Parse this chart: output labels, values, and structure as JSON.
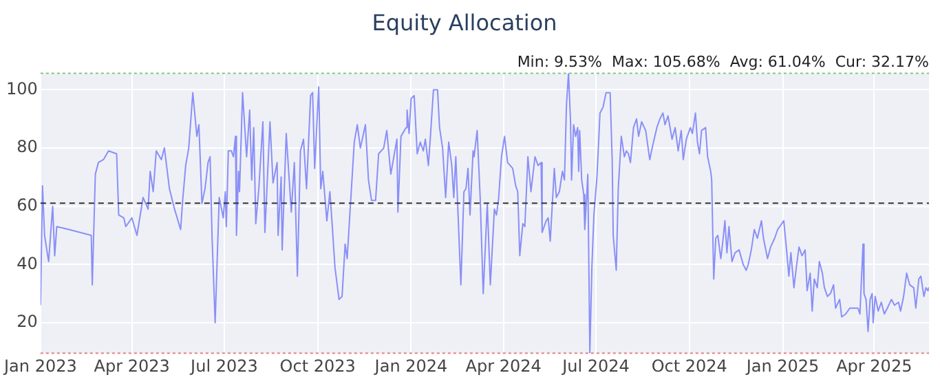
{
  "chart_data": {
    "type": "line",
    "title": "Equity Allocation",
    "annotations": [
      "Min: 9.53%  Max: 105.68%  Avg: 61.04%  Cur: 32.17%"
    ],
    "x": [
      "2023-01-01",
      "2023-01-03",
      "2023-01-05",
      "2023-01-09",
      "2023-01-13",
      "2023-01-15",
      "2023-01-17",
      "2023-01-29",
      "2023-02-20",
      "2023-02-21",
      "2023-02-24",
      "2023-02-27",
      "2023-03-04",
      "2023-03-09",
      "2023-03-17",
      "2023-03-19",
      "2023-03-24",
      "2023-03-26",
      "2023-04-01",
      "2023-04-06",
      "2023-04-12",
      "2023-04-17",
      "2023-04-19",
      "2023-04-22",
      "2023-04-25",
      "2023-04-30",
      "2023-05-03",
      "2023-05-08",
      "2023-05-13",
      "2023-05-19",
      "2023-05-21",
      "2023-05-24",
      "2023-05-27",
      "2023-05-31",
      "2023-06-04",
      "2023-06-06",
      "2023-06-09",
      "2023-06-12",
      "2023-06-15",
      "2023-06-17",
      "2023-06-19",
      "2023-06-22",
      "2023-06-26",
      "2023-06-30",
      "2023-07-02",
      "2023-07-03",
      "2023-07-05",
      "2023-07-08",
      "2023-07-10",
      "2023-07-12",
      "2023-07-13",
      "2023-07-15",
      "2023-07-16",
      "2023-07-19",
      "2023-07-23",
      "2023-07-26",
      "2023-07-28",
      "2023-07-30",
      "2023-08-01",
      "2023-08-04",
      "2023-08-08",
      "2023-08-10",
      "2023-08-15",
      "2023-08-18",
      "2023-08-22",
      "2023-08-23",
      "2023-08-26",
      "2023-08-27",
      "2023-08-31",
      "2023-09-05",
      "2023-09-08",
      "2023-09-11",
      "2023-09-14",
      "2023-09-17",
      "2023-09-20",
      "2023-09-24",
      "2023-09-26",
      "2023-09-28",
      "2023-10-02",
      "2023-10-04",
      "2023-10-06",
      "2023-10-10",
      "2023-10-13",
      "2023-10-15",
      "2023-10-18",
      "2023-10-22",
      "2023-10-25",
      "2023-10-28",
      "2023-10-30",
      "2023-11-06",
      "2023-11-09",
      "2023-11-12",
      "2023-11-17",
      "2023-11-20",
      "2023-11-23",
      "2023-11-27",
      "2023-11-30",
      "2023-12-05",
      "2023-12-08",
      "2023-12-12",
      "2023-12-15",
      "2023-12-18",
      "2023-12-19",
      "2023-12-22",
      "2023-12-27",
      "2023-12-28",
      "2023-12-30",
      "2024-01-01",
      "2024-01-04",
      "2024-01-07",
      "2024-01-10",
      "2024-01-13",
      "2024-01-15",
      "2024-01-18",
      "2024-01-20",
      "2024-01-23",
      "2024-01-27",
      "2024-01-29",
      "2024-02-01",
      "2024-02-04",
      "2024-02-07",
      "2024-02-10",
      "2024-02-12",
      "2024-02-14",
      "2024-02-16",
      "2024-02-19",
      "2024-02-22",
      "2024-02-24",
      "2024-02-26",
      "2024-02-28",
      "2024-03-02",
      "2024-03-03",
      "2024-03-06",
      "2024-03-09",
      "2024-03-12",
      "2024-03-16",
      "2024-03-19",
      "2024-03-23",
      "2024-03-25",
      "2024-03-27",
      "2024-03-30",
      "2024-04-02",
      "2024-04-05",
      "2024-04-10",
      "2024-04-13",
      "2024-04-15",
      "2024-04-17",
      "2024-04-20",
      "2024-04-22",
      "2024-04-25",
      "2024-04-28",
      "2024-05-02",
      "2024-05-05",
      "2024-05-08",
      "2024-05-09",
      "2024-05-13",
      "2024-05-15",
      "2024-05-17",
      "2024-05-21",
      "2024-05-23",
      "2024-05-26",
      "2024-05-29",
      "2024-05-31",
      "2024-06-02",
      "2024-06-04",
      "2024-06-06",
      "2024-06-07",
      "2024-06-09",
      "2024-06-11",
      "2024-06-13",
      "2024-06-14",
      "2024-06-15",
      "2024-06-17",
      "2024-06-19",
      "2024-06-20",
      "2024-06-22",
      "2024-06-23",
      "2024-06-25",
      "2024-06-27",
      "2024-06-29",
      "2024-07-02",
      "2024-07-05",
      "2024-07-08",
      "2024-07-11",
      "2024-07-15",
      "2024-07-17",
      "2024-07-18",
      "2024-07-21",
      "2024-07-23",
      "2024-07-26",
      "2024-07-29",
      "2024-07-31",
      "2024-08-02",
      "2024-08-04",
      "2024-08-07",
      "2024-08-10",
      "2024-08-12",
      "2024-08-15",
      "2024-08-19",
      "2024-08-23",
      "2024-08-26",
      "2024-08-30",
      "2024-09-02",
      "2024-09-05",
      "2024-09-07",
      "2024-09-10",
      "2024-09-14",
      "2024-09-17",
      "2024-09-20",
      "2024-09-23",
      "2024-09-25",
      "2024-09-28",
      "2024-10-02",
      "2024-10-04",
      "2024-10-07",
      "2024-10-09",
      "2024-10-11",
      "2024-10-13",
      "2024-10-17",
      "2024-10-19",
      "2024-10-22",
      "2024-10-23",
      "2024-10-25",
      "2024-10-27",
      "2024-10-29",
      "2024-11-01",
      "2024-11-03",
      "2024-11-05",
      "2024-11-07",
      "2024-11-09",
      "2024-11-12",
      "2024-11-15",
      "2024-11-19",
      "2024-11-23",
      "2024-11-26",
      "2024-11-28",
      "2024-12-01",
      "2024-12-04",
      "2024-12-07",
      "2024-12-09",
      "2024-12-11",
      "2024-12-13",
      "2024-12-17",
      "2024-12-20",
      "2024-12-24",
      "2024-12-27",
      "2024-12-31",
      "2025-01-02",
      "2025-01-05",
      "2025-01-07",
      "2025-01-09",
      "2025-01-12",
      "2025-01-14",
      "2025-01-17",
      "2025-01-20",
      "2025-01-23",
      "2025-01-25",
      "2025-01-28",
      "2025-01-30",
      "2025-02-01",
      "2025-02-04",
      "2025-02-06",
      "2025-02-09",
      "2025-02-11",
      "2025-02-14",
      "2025-02-17",
      "2025-02-20",
      "2025-02-22",
      "2025-02-26",
      "2025-02-28",
      "2025-03-04",
      "2025-03-08",
      "2025-03-11",
      "2025-03-13",
      "2025-03-16",
      "2025-03-18",
      "2025-03-21",
      "2025-03-22",
      "2025-03-24",
      "2025-03-26",
      "2025-03-28",
      "2025-03-30",
      "2025-03-31",
      "2025-04-02",
      "2025-04-05",
      "2025-04-08",
      "2025-04-11",
      "2025-04-14",
      "2025-04-18",
      "2025-04-21",
      "2025-04-25",
      "2025-04-27",
      "2025-04-30",
      "2025-05-03",
      "2025-05-06",
      "2025-05-10",
      "2025-05-12",
      "2025-05-15",
      "2025-05-17",
      "2025-05-20",
      "2025-05-22",
      "2025-05-24",
      "2025-05-25"
    ],
    "series": [
      {
        "color": "#8a8ff7",
        "values": [
          26,
          67,
          50,
          41,
          60,
          43,
          53,
          52,
          50,
          33,
          71,
          75,
          76,
          79,
          78,
          57,
          56,
          53,
          56,
          50,
          63,
          59,
          72,
          65,
          79,
          76,
          80,
          66,
          59,
          52,
          62,
          74,
          80,
          99,
          84,
          88,
          61,
          66,
          75,
          77,
          49,
          20,
          63,
          56,
          65,
          53,
          79,
          79,
          77,
          84,
          50,
          72,
          65,
          99,
          77,
          93,
          69,
          87,
          54,
          66,
          89,
          51,
          89,
          68,
          75,
          50,
          70,
          45,
          85,
          58,
          75,
          36,
          79,
          83,
          66,
          98,
          99,
          73,
          101,
          66,
          72,
          55,
          65,
          55,
          39,
          28,
          29,
          47,
          42,
          82,
          88,
          80,
          88,
          69,
          62,
          62,
          78,
          80,
          86,
          71,
          77,
          83,
          58,
          84,
          87,
          93,
          85,
          97,
          98,
          78,
          82,
          79,
          83,
          74,
          84,
          100,
          100,
          87,
          80,
          63,
          82,
          74,
          63,
          77,
          59,
          33,
          65,
          66,
          73,
          57,
          79,
          77,
          86,
          63,
          30,
          61,
          33,
          59,
          57,
          62,
          77,
          84,
          75,
          73,
          67,
          65,
          43,
          54,
          53,
          77,
          65,
          77,
          74,
          75,
          51,
          55,
          56,
          48,
          73,
          63,
          65,
          72,
          69,
          95,
          105.68,
          89,
          69,
          88,
          84,
          87,
          72,
          86,
          69,
          64,
          52,
          64,
          71,
          9.53,
          39,
          57,
          70,
          92,
          94,
          99,
          99,
          76,
          50,
          38,
          66,
          84,
          77,
          79,
          78,
          75,
          87,
          90,
          84,
          89,
          86,
          76,
          81,
          87,
          90,
          92,
          88,
          91,
          83,
          87,
          79,
          86,
          76,
          83,
          87,
          85,
          92,
          82,
          78,
          86,
          87,
          77,
          72,
          69,
          35,
          49,
          50,
          42,
          48,
          55,
          44,
          53,
          41,
          44,
          45,
          40,
          38,
          40,
          45,
          52,
          49,
          52,
          55,
          49,
          42,
          46,
          49,
          52,
          54,
          55,
          44,
          36,
          44,
          32,
          38,
          46,
          43,
          45,
          31,
          37,
          24,
          35,
          32,
          41,
          37,
          32,
          29,
          30,
          33,
          25,
          28,
          22,
          23,
          25,
          25,
          25,
          25,
          23,
          47,
          30,
          28,
          17,
          28,
          30,
          20,
          29,
          24,
          27,
          23,
          25,
          28,
          26,
          27,
          24,
          29,
          37,
          33,
          32,
          25,
          35,
          36,
          29,
          32,
          31,
          32.17
        ]
      }
    ],
    "xlim": [
      "2023-01-01",
      "2025-05-25"
    ],
    "xticks": [
      {
        "value": "2023-01-01",
        "label": "Jan 2023"
      },
      {
        "value": "2023-04-01",
        "label": "Apr 2023"
      },
      {
        "value": "2023-07-01",
        "label": "Jul 2023"
      },
      {
        "value": "2023-10-01",
        "label": "Oct 2023"
      },
      {
        "value": "2024-01-01",
        "label": "Jan 2024"
      },
      {
        "value": "2024-04-01",
        "label": "Apr 2024"
      },
      {
        "value": "2024-07-01",
        "label": "Jul 2024"
      },
      {
        "value": "2024-10-01",
        "label": "Oct 2024"
      },
      {
        "value": "2025-01-01",
        "label": "Jan 2025"
      },
      {
        "value": "2025-04-01",
        "label": "Apr 2025"
      }
    ],
    "ylim": [
      9.53,
      105.68
    ],
    "yticks": [
      20,
      40,
      60,
      80,
      100
    ],
    "ref_lines": [
      {
        "axis": "y",
        "value": 105.68,
        "color": "#7fc97f",
        "line_style": "dotted"
      },
      {
        "axis": "y",
        "value": 9.53,
        "color": "#e88080",
        "line_style": "dotted"
      },
      {
        "axis": "y",
        "value": 61.04,
        "color": "#333333",
        "line_style": "dashed"
      }
    ],
    "grid": true,
    "legend": false,
    "marker": "none",
    "line_style": "solid"
  }
}
